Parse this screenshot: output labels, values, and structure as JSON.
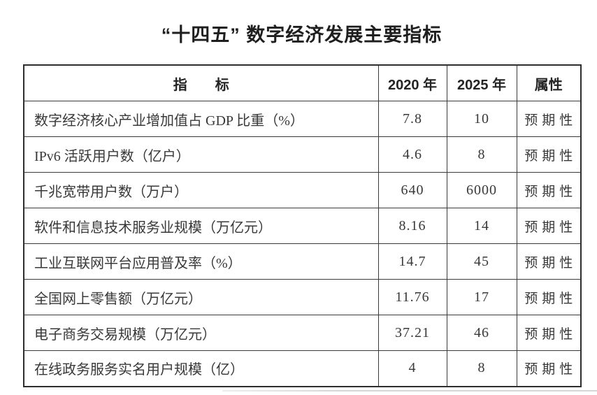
{
  "title": "“十四五” 数字经济发展主要指标",
  "colors": {
    "background": "#ffffff",
    "border": "#3a3a3a",
    "title_text": "#1e1e1e",
    "body_text": "#383838"
  },
  "table": {
    "headers": {
      "indicator": "指　　标",
      "y2020": "2020 年",
      "y2025": "2025 年",
      "attribute": "属性"
    },
    "rows": [
      {
        "indicator": "数字经济核心产业增加值占 GDP 比重（%）",
        "y2020": "7.8",
        "y2025": "10",
        "attribute": "预期性"
      },
      {
        "indicator": "IPv6 活跃用户数（亿户）",
        "y2020": "4.6",
        "y2025": "8",
        "attribute": "预期性"
      },
      {
        "indicator": "千兆宽带用户数（万户）",
        "y2020": "640",
        "y2025": "6000",
        "attribute": "预期性"
      },
      {
        "indicator": "软件和信息技术服务业规模（万亿元）",
        "y2020": "8.16",
        "y2025": "14",
        "attribute": "预期性"
      },
      {
        "indicator": "工业互联网平台应用普及率（%）",
        "y2020": "14.7",
        "y2025": "45",
        "attribute": "预期性"
      },
      {
        "indicator": "全国网上零售额（万亿元）",
        "y2020": "11.76",
        "y2025": "17",
        "attribute": "预期性"
      },
      {
        "indicator": "电子商务交易规模（万亿元）",
        "y2020": "37.21",
        "y2025": "46",
        "attribute": "预期性"
      },
      {
        "indicator": "在线政务服务实名用户规模（亿）",
        "y2020": "4",
        "y2025": "8",
        "attribute": "预期性"
      }
    ]
  }
}
